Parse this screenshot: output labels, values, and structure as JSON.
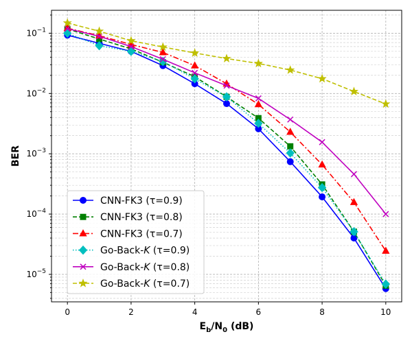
{
  "chart_data": {
    "type": "line",
    "title": "",
    "xlabel": "E_b/N_0 (dB)",
    "xlabel_parts": {
      "main": "E",
      "sub1": "b",
      "mid": "/N",
      "sub2": "0",
      "tail": " (dB)"
    },
    "ylabel": "BER",
    "y_scale": "log",
    "xlim": [
      -0.5,
      10.5
    ],
    "ylim": [
      3.5e-06,
      0.24
    ],
    "x_ticks": [
      0,
      2,
      4,
      6,
      8,
      10
    ],
    "x_tick_labels": [
      "0",
      "2",
      "4",
      "6",
      "8",
      "10"
    ],
    "y_ticks": [
      1e-05,
      0.0001,
      0.001,
      0.01,
      0.1
    ],
    "y_tick_labels": [
      {
        "base": "10",
        "exp": "−5"
      },
      {
        "base": "10",
        "exp": "−4"
      },
      {
        "base": "10",
        "exp": "−3"
      },
      {
        "base": "10",
        "exp": "−2"
      },
      {
        "base": "10",
        "exp": "−1"
      }
    ],
    "grid": true,
    "legend_position": "lower-left",
    "series": [
      {
        "name": "CNN-FK3 (τ=0.9)",
        "label_parts": {
          "pre": "CNN-FK3 (τ=0.9)",
          "ital": "",
          "post": ""
        },
        "color": "#0000ff",
        "dash": "solid",
        "marker": "circle",
        "x": [
          0,
          1,
          2,
          3,
          4,
          5,
          6,
          7,
          8,
          9,
          10
        ],
        "y": [
          0.093,
          0.068,
          0.05,
          0.029,
          0.0145,
          0.0068,
          0.0026,
          0.00074,
          0.000193,
          4e-05,
          5.8e-06
        ]
      },
      {
        "name": "CNN-FK3 (τ=0.8)",
        "label_parts": {
          "pre": "CNN-FK3 (τ=0.8)",
          "ital": "",
          "post": ""
        },
        "color": "#008000",
        "dash": "dashed",
        "marker": "square",
        "x": [
          0,
          1,
          2,
          3,
          4,
          5,
          6,
          7,
          8,
          9,
          10
        ],
        "y": [
          0.118,
          0.08,
          0.055,
          0.033,
          0.019,
          0.0088,
          0.0039,
          0.00133,
          0.00031,
          5.1e-05,
          6.5e-06
        ]
      },
      {
        "name": "CNN-FK3 (τ=0.7)",
        "label_parts": {
          "pre": "CNN-FK3 (τ=0.7)",
          "ital": "",
          "post": ""
        },
        "color": "#ff0000",
        "dash": "dashdot",
        "marker": "triangle",
        "x": [
          0,
          1,
          2,
          3,
          4,
          5,
          6,
          7,
          8,
          9,
          10
        ],
        "y": [
          0.121,
          0.091,
          0.065,
          0.048,
          0.029,
          0.0145,
          0.0066,
          0.0023,
          0.00066,
          0.000157,
          2.45e-05
        ]
      },
      {
        "name": "Go-Back-K (τ=0.9)",
        "label_parts": {
          "pre": "Go-Back-",
          "ital": "K",
          "post": " (τ=0.9)"
        },
        "color": "#00bfbf",
        "dash": "dotted",
        "marker": "diamond",
        "x": [
          0,
          1,
          2,
          3,
          4,
          5,
          6,
          7,
          8,
          9,
          10
        ],
        "y": [
          0.1,
          0.062,
          0.05,
          0.034,
          0.0175,
          0.0088,
          0.0032,
          0.00103,
          0.000275,
          5.1e-05,
          6.9e-06
        ]
      },
      {
        "name": "Go-Back-K (τ=0.8)",
        "label_parts": {
          "pre": "Go-Back-",
          "ital": "K",
          "post": " (τ=0.8)"
        },
        "color": "#bf00bf",
        "dash": "solid",
        "marker": "x",
        "x": [
          0,
          1,
          2,
          3,
          4,
          5,
          6,
          7,
          8,
          9,
          10
        ],
        "y": [
          0.119,
          0.089,
          0.06,
          0.037,
          0.022,
          0.0135,
          0.0083,
          0.0037,
          0.00156,
          0.00046,
          0.0001
        ]
      },
      {
        "name": "Go-Back-K (τ=0.7)",
        "label_parts": {
          "pre": "Go-Back-",
          "ital": "K",
          "post": " (τ=0.7)"
        },
        "color": "#bfbf00",
        "dash": "dashed",
        "marker": "star",
        "x": [
          0,
          1,
          2,
          3,
          4,
          5,
          6,
          7,
          8,
          9,
          10
        ],
        "y": [
          0.148,
          0.108,
          0.075,
          0.059,
          0.047,
          0.038,
          0.0315,
          0.0245,
          0.0176,
          0.0108,
          0.0067
        ]
      }
    ]
  }
}
